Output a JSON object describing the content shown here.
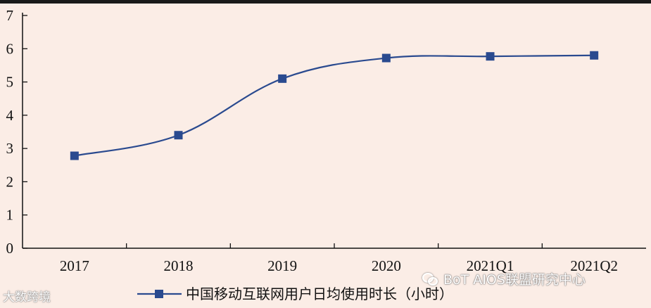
{
  "chart_data": {
    "type": "line",
    "categories": [
      "2017",
      "2018",
      "2019",
      "2020",
      "2021Q1",
      "2021Q2"
    ],
    "series": [
      {
        "name": "中国移动互联网用户日均使用时长（小时）",
        "values": [
          2.78,
          3.4,
          5.1,
          5.72,
          5.77,
          5.8
        ],
        "color": "#2a4a8f"
      }
    ],
    "y_ticks": [
      "0",
      "1",
      "2",
      "3",
      "4",
      "5",
      "6",
      "7"
    ],
    "ylim": [
      0,
      7
    ],
    "grid": false,
    "legend_position": "bottom-center",
    "marker": "square",
    "curve": "smooth"
  },
  "watermarks": {
    "left": "大数跨境",
    "right": "BoT AIOS联盟研究中心"
  }
}
